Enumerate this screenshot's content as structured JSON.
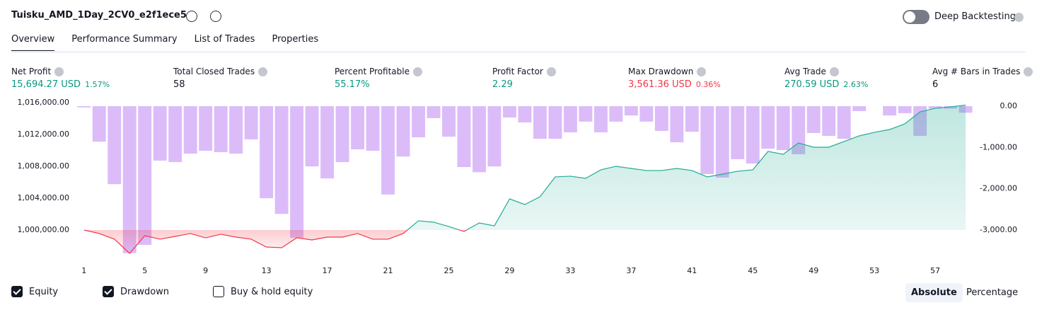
{
  "header": {
    "title": "Tuisku_AMD_1Day_2CV0_e2f1ece5",
    "deep_backtesting": "Deep Backtesting"
  },
  "tabs": [
    "Overview",
    "Performance Summary",
    "List of Trades",
    "Properties"
  ],
  "metrics": [
    {
      "label": "Net Profit",
      "value": "15,694.27 USD",
      "percent": "1.57%"
    },
    {
      "label": "Total Closed Trades",
      "value": "58"
    },
    {
      "label": "Percent Profitable",
      "value": "55.17%"
    },
    {
      "label": "Profit Factor",
      "value": "2.29"
    },
    {
      "label": "Max Drawdown",
      "value": "3,561.36 USD",
      "percent": "0.36%"
    },
    {
      "label": "Avg Trade",
      "value": "270.59 USD",
      "percent": "2.63%"
    },
    {
      "label": "Avg # Bars in Trades",
      "value": "6"
    }
  ],
  "chart_data": {
    "type": "combo",
    "x": [
      1,
      2,
      3,
      4,
      5,
      6,
      7,
      8,
      9,
      10,
      11,
      12,
      13,
      14,
      15,
      16,
      17,
      18,
      19,
      20,
      21,
      22,
      23,
      24,
      25,
      26,
      27,
      28,
      29,
      30,
      31,
      32,
      33,
      34,
      35,
      36,
      37,
      38,
      39,
      40,
      41,
      42,
      43,
      44,
      45,
      46,
      47,
      48,
      49,
      50,
      51,
      52,
      53,
      54,
      55,
      56,
      57,
      58,
      59
    ],
    "xlim": [
      0.5,
      59.6
    ],
    "xticks": [
      1,
      5,
      9,
      13,
      17,
      21,
      25,
      29,
      33,
      37,
      41,
      45,
      49,
      53,
      57
    ],
    "series": [
      {
        "name": "Drawdown",
        "type": "bar",
        "axis": "y2",
        "color": "#cfa6f7",
        "values": [
          -30,
          -860,
          -1890,
          -3561,
          -3360,
          -1320,
          -1355,
          -1150,
          -1080,
          -1115,
          -1150,
          -805,
          -2230,
          -2610,
          -3190,
          -1460,
          -1750,
          -1355,
          -1045,
          -1080,
          -2140,
          -1220,
          -755,
          -290,
          -740,
          -1475,
          -1600,
          -1460,
          -275,
          -395,
          -790,
          -790,
          -635,
          -375,
          -635,
          -375,
          -225,
          -375,
          -600,
          -875,
          -620,
          -1645,
          -1730,
          -1285,
          -1390,
          -1030,
          -1065,
          -1165,
          -650,
          -720,
          -790,
          -120,
          0,
          -225,
          -170,
          -720,
          -60,
          -60,
          -160
        ]
      },
      {
        "name": "Equity",
        "type": "line",
        "axis": "y",
        "color": "#22ab94",
        "below_color": "#f23645",
        "baseline": 1000000,
        "values": [
          1000000,
          999560,
          998850,
          997070,
          999290,
          998850,
          999200,
          999560,
          999020,
          999470,
          999110,
          998850,
          997870,
          997780,
          999020,
          998760,
          999110,
          999110,
          999560,
          998850,
          998850,
          999560,
          1001160,
          1000980,
          1000440,
          999820,
          1000890,
          1000530,
          1003910,
          1003200,
          1004180,
          1006670,
          1006760,
          1006490,
          1007560,
          1008000,
          1007730,
          1007470,
          1007470,
          1007730,
          1007470,
          1006670,
          1007020,
          1007380,
          1007560,
          1009870,
          1009510,
          1010930,
          1010400,
          1010400,
          1011110,
          1011820,
          1012270,
          1012620,
          1013330,
          1014840,
          1015290,
          1015470,
          1015690
        ]
      }
    ],
    "ylim": [
      996890,
      1016440
    ],
    "yticks": [
      {
        "value": 1000000,
        "label": "1,000,000.00"
      },
      {
        "value": 1004000,
        "label": "1,004,000.00"
      },
      {
        "value": 1008000,
        "label": "1,008,000.00"
      },
      {
        "value": 1012000,
        "label": "1,012,000.00"
      },
      {
        "value": 1016000,
        "label": "1,016,000.00"
      }
    ],
    "y2lim": [
      -3600,
      171
    ],
    "y2ticks": [
      {
        "value": 0,
        "label": "0.00"
      },
      {
        "value": -1000,
        "label": "-1,000.00"
      },
      {
        "value": -2000,
        "label": "-2,000.00"
      },
      {
        "value": -3000,
        "label": "-3,000.00"
      }
    ]
  },
  "legend": [
    {
      "label": "Equity",
      "checked": true
    },
    {
      "label": "Drawdown",
      "checked": true
    },
    {
      "label": "Buy & hold equity",
      "checked": false
    }
  ],
  "modes": [
    {
      "label": "Absolute",
      "active": true
    },
    {
      "label": "Percentage",
      "active": false
    }
  ]
}
